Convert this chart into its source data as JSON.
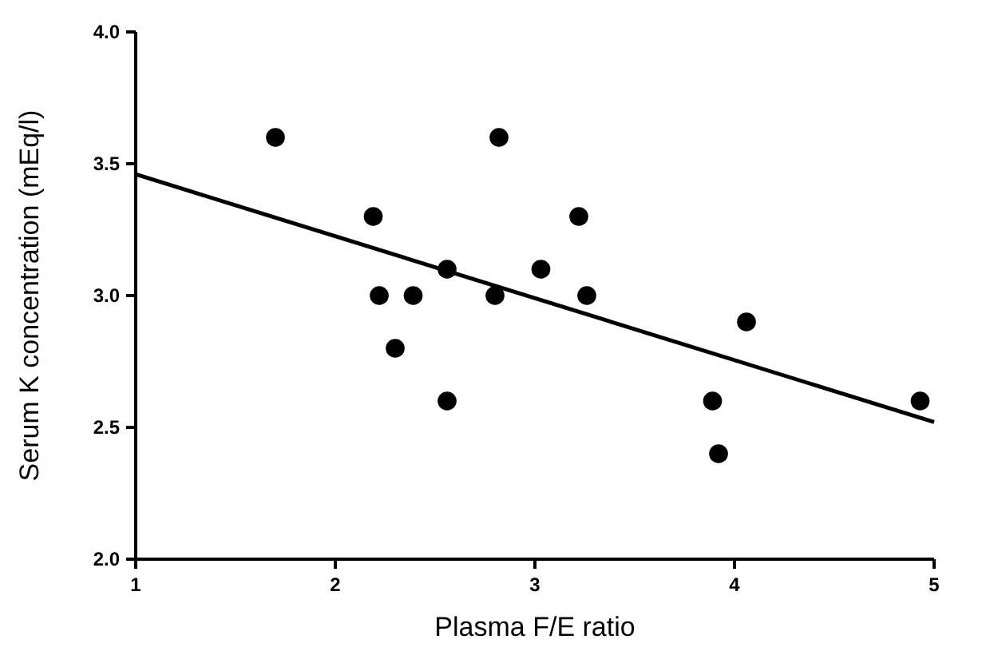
{
  "chart_data": {
    "type": "scatter",
    "xlabel": "Plasma F/E ratio",
    "ylabel": "Serum K concentration (mEq/l)",
    "xlim": [
      1,
      5
    ],
    "xticks": [
      1,
      2,
      3,
      4,
      5
    ],
    "ylim": [
      2,
      4
    ],
    "yticks": [
      {
        "value": 2,
        "label": "2.0"
      },
      2.5,
      {
        "value": 3,
        "label": "3.0"
      },
      3.5,
      {
        "value": 4,
        "label": "4.0"
      }
    ],
    "grid": false,
    "series": [
      {
        "color": "#000000",
        "marker": "circle",
        "x": [
          1.7,
          2.19,
          2.22,
          2.3,
          2.39,
          2.56,
          2.56,
          2.8,
          2.82,
          3.03,
          3.22,
          3.26,
          3.89,
          3.92,
          4.06,
          4.93
        ],
        "values": [
          3.6,
          3.3,
          3.0,
          2.8,
          3.0,
          3.1,
          2.6,
          3.0,
          3.6,
          3.1,
          3.3,
          3.0,
          2.6,
          2.4,
          2.9,
          2.6
        ]
      },
      {
        "type": "line",
        "color": "#000000",
        "x": [
          1,
          5
        ],
        "values": [
          3.46,
          2.52
        ]
      }
    ]
  }
}
